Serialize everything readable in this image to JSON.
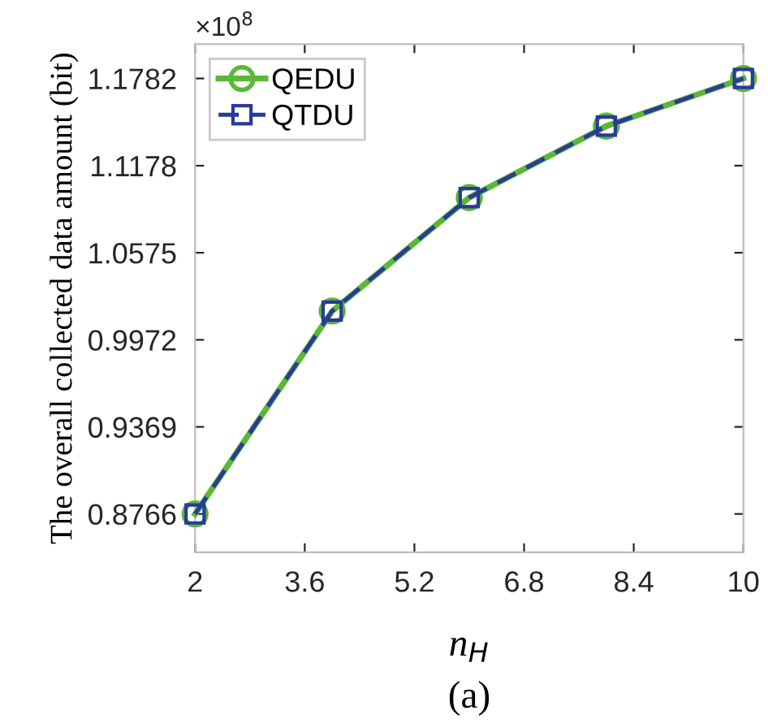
{
  "chart_data": {
    "type": "line",
    "xlabel": "n$_{H}$",
    "ylabel": "The overall collected data amount (bit)",
    "annotations": [
      "×10$^{8}$",
      "(a)"
    ],
    "x": [
      2,
      4,
      6,
      8,
      10
    ],
    "series": [
      {
        "name": "QEDU",
        "color": "#5ab836",
        "values": [
          0.8766,
          1.0171,
          1.0957,
          1.1452,
          1.1782
        ],
        "marker": "circle",
        "line_style": "solid"
      },
      {
        "name": "QTDU",
        "color": "#2a3a9a",
        "values": [
          0.8766,
          1.0171,
          1.0957,
          1.1452,
          1.1782
        ],
        "marker": "square",
        "line_style": "dashed"
      }
    ],
    "xlim": [
      2,
      10
    ],
    "xticks": [
      2,
      3.6,
      5.2,
      6.8,
      8.4,
      10
    ],
    "ylim": [
      0.85,
      1.202
    ],
    "yticks": [
      0.8766,
      0.9369,
      0.9972,
      1.0575,
      1.1178,
      1.1782
    ],
    "grid": false,
    "legend": "top left"
  }
}
